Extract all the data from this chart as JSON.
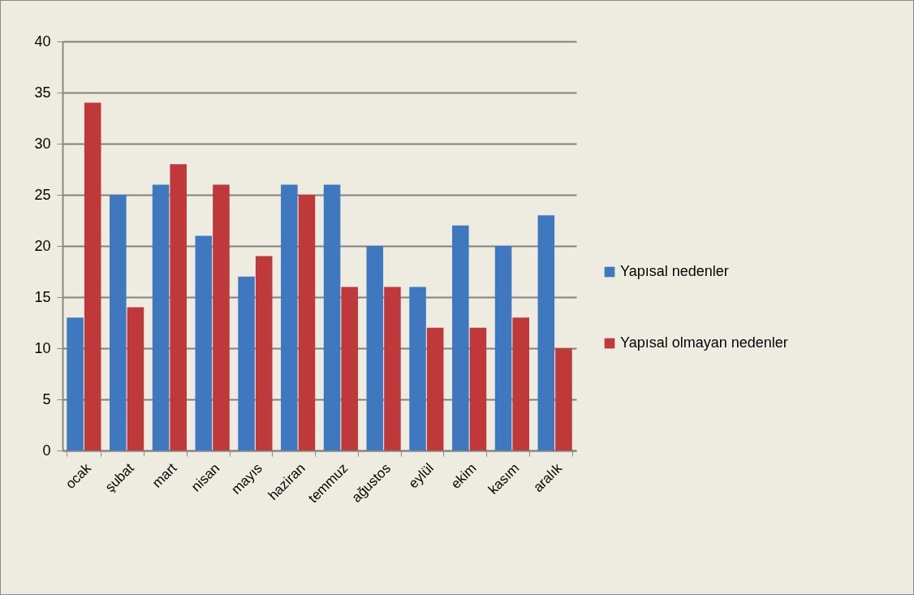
{
  "chart_data": {
    "type": "bar",
    "categories": [
      "ocak",
      "şubat",
      "mart",
      "nisan",
      "mayıs",
      "haziran",
      "temmuz",
      "ağustos",
      "eylül",
      "ekim",
      "kasım",
      "aralık"
    ],
    "series": [
      {
        "name": "Yapısal nedenler",
        "color": "#3f78bf",
        "values": [
          13,
          25,
          26,
          21,
          17,
          26,
          26,
          20,
          16,
          22,
          20,
          23
        ]
      },
      {
        "name": "Yapısal olmayan nedenler",
        "color": "#c0393a",
        "values": [
          34,
          14,
          28,
          26,
          19,
          25,
          16,
          16,
          12,
          12,
          13,
          10
        ]
      }
    ],
    "ylim": [
      0,
      40
    ],
    "yticks": [
      0,
      5,
      10,
      15,
      20,
      25,
      30,
      35,
      40
    ],
    "grid": "y",
    "legend": "right"
  }
}
